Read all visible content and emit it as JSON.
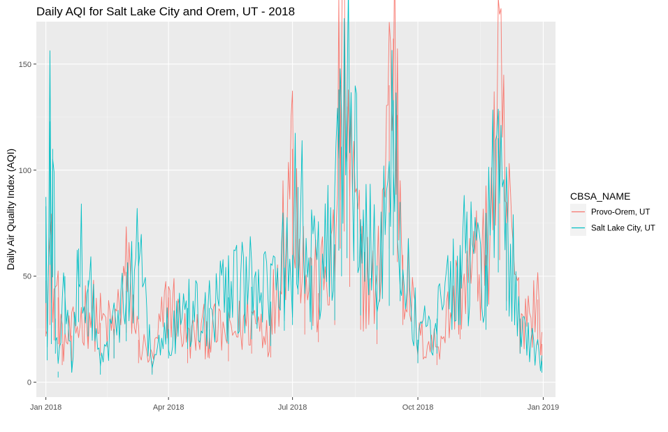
{
  "chart_data": {
    "type": "line",
    "title": "Daily AQI for Salt Lake City and Orem, UT - 2018",
    "xlabel": "",
    "ylabel": "Daily Air Quality Index (AQI)",
    "x_range": [
      "2017-12-25",
      "2019-01-10"
    ],
    "ylim": [
      -7,
      170
    ],
    "x_ticks": [
      {
        "date": "2018-01-01",
        "label": "Jan 2018"
      },
      {
        "date": "2018-04-01",
        "label": "Apr 2018"
      },
      {
        "date": "2018-07-01",
        "label": "Jul 2018"
      },
      {
        "date": "2018-10-01",
        "label": "Oct 2018"
      },
      {
        "date": "2019-01-01",
        "label": "Jan 2019"
      }
    ],
    "y_ticks": [
      0,
      50,
      100,
      150
    ],
    "grid": true,
    "legend": {
      "title": "CBSA_NAME",
      "position": "right"
    },
    "series": [
      {
        "name": "Provo-Orem, UT",
        "color": "#F8766D",
        "points": [
          [
            "2018-01-01",
            48
          ],
          [
            "2018-01-04",
            60
          ],
          [
            "2018-01-07",
            44
          ],
          [
            "2018-01-10",
            40
          ],
          [
            "2018-01-13",
            18
          ],
          [
            "2018-01-20",
            22
          ],
          [
            "2018-02-01",
            35
          ],
          [
            "2018-02-10",
            28
          ],
          [
            "2018-02-20",
            25
          ],
          [
            "2018-03-01",
            52
          ],
          [
            "2018-03-10",
            20
          ],
          [
            "2018-03-20",
            10
          ],
          [
            "2018-04-01",
            40
          ],
          [
            "2018-04-15",
            20
          ],
          [
            "2018-05-01",
            25
          ],
          [
            "2018-05-15",
            22
          ],
          [
            "2018-06-01",
            30
          ],
          [
            "2018-06-15",
            26
          ],
          [
            "2018-07-01",
            110
          ],
          [
            "2018-07-10",
            50
          ],
          [
            "2018-07-20",
            42
          ],
          [
            "2018-08-01",
            60
          ],
          [
            "2018-08-05",
            140
          ],
          [
            "2018-08-08",
            158
          ],
          [
            "2018-08-12",
            100
          ],
          [
            "2018-08-20",
            55
          ],
          [
            "2018-09-01",
            40
          ],
          [
            "2018-09-10",
            140
          ],
          [
            "2018-09-13",
            162
          ],
          [
            "2018-09-16",
            126
          ],
          [
            "2018-09-20",
            60
          ],
          [
            "2018-10-01",
            20
          ],
          [
            "2018-10-15",
            18
          ],
          [
            "2018-11-01",
            45
          ],
          [
            "2018-11-20",
            60
          ],
          [
            "2018-11-30",
            128
          ],
          [
            "2018-12-05",
            85
          ],
          [
            "2018-12-15",
            30
          ],
          [
            "2018-12-28",
            39
          ],
          [
            "2018-12-31",
            18
          ]
        ]
      },
      {
        "name": "Salt Lake City, UT",
        "color": "#00BFC4",
        "points": [
          [
            "2018-01-01",
            83
          ],
          [
            "2018-01-02",
            23
          ],
          [
            "2018-01-04",
            123
          ],
          [
            "2018-01-05",
            40
          ],
          [
            "2018-01-06",
            110
          ],
          [
            "2018-01-08",
            30
          ],
          [
            "2018-01-10",
            5
          ],
          [
            "2018-01-15",
            50
          ],
          [
            "2018-01-20",
            10
          ],
          [
            "2018-01-25",
            63
          ],
          [
            "2018-02-01",
            48
          ],
          [
            "2018-02-10",
            8
          ],
          [
            "2018-02-20",
            25
          ],
          [
            "2018-03-01",
            43
          ],
          [
            "2018-03-10",
            66
          ],
          [
            "2018-03-20",
            8
          ],
          [
            "2018-04-01",
            25
          ],
          [
            "2018-04-15",
            35
          ],
          [
            "2018-05-01",
            35
          ],
          [
            "2018-05-15",
            40
          ],
          [
            "2018-06-01",
            45
          ],
          [
            "2018-06-15",
            38
          ],
          [
            "2018-06-25",
            54
          ],
          [
            "2018-07-01",
            60
          ],
          [
            "2018-07-05",
            92
          ],
          [
            "2018-07-15",
            55
          ],
          [
            "2018-08-01",
            65
          ],
          [
            "2018-08-04",
            138
          ],
          [
            "2018-08-06",
            111
          ],
          [
            "2018-08-10",
            130
          ],
          [
            "2018-08-20",
            70
          ],
          [
            "2018-09-01",
            55
          ],
          [
            "2018-09-10",
            80
          ],
          [
            "2018-09-13",
            133
          ],
          [
            "2018-09-18",
            85
          ],
          [
            "2018-10-01",
            20
          ],
          [
            "2018-10-15",
            30
          ],
          [
            "2018-11-01",
            60
          ],
          [
            "2018-11-20",
            55
          ],
          [
            "2018-11-29",
            115
          ],
          [
            "2018-12-05",
            75
          ],
          [
            "2018-12-15",
            30
          ],
          [
            "2018-12-31",
            10
          ]
        ]
      }
    ]
  }
}
